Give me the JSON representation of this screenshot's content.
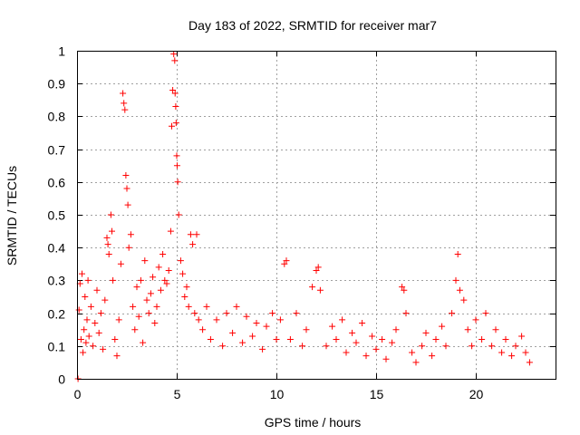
{
  "chart_data": {
    "type": "scatter",
    "title": "Day 183 of 2022, SRMTID for receiver mar7",
    "xlabel": "GPS time / hours",
    "ylabel": "SRMTID / TECUs",
    "xlim": [
      0,
      24
    ],
    "ylim": [
      0,
      1
    ],
    "x_ticks": [
      0,
      5,
      10,
      15,
      20
    ],
    "x_tick_labels": [
      "0",
      "5",
      "10",
      "15",
      "20"
    ],
    "y_ticks": [
      0,
      0.1,
      0.2,
      0.3,
      0.4,
      0.5,
      0.6,
      0.7,
      0.8,
      0.9,
      1
    ],
    "y_tick_labels": [
      "0",
      "0.1",
      "0.2",
      "0.3",
      "0.4",
      "0.5",
      "0.6",
      "0.7",
      "0.8",
      "0.9",
      "1"
    ],
    "grid": true,
    "marker": "+",
    "marker_color": "#ff0000",
    "series": [
      {
        "name": "SRMTID",
        "points": [
          [
            0.05,
            0.0
          ],
          [
            0.1,
            0.21
          ],
          [
            0.15,
            0.29
          ],
          [
            0.2,
            0.12
          ],
          [
            0.25,
            0.32
          ],
          [
            0.3,
            0.08
          ],
          [
            0.35,
            0.15
          ],
          [
            0.4,
            0.25
          ],
          [
            0.45,
            0.11
          ],
          [
            0.5,
            0.18
          ],
          [
            0.55,
            0.3
          ],
          [
            0.6,
            0.13
          ],
          [
            0.7,
            0.22
          ],
          [
            0.8,
            0.1
          ],
          [
            0.9,
            0.17
          ],
          [
            1.0,
            0.27
          ],
          [
            1.1,
            0.14
          ],
          [
            1.2,
            0.2
          ],
          [
            1.3,
            0.09
          ],
          [
            1.4,
            0.24
          ],
          [
            1.5,
            0.43
          ],
          [
            1.55,
            0.41
          ],
          [
            1.6,
            0.38
          ],
          [
            1.7,
            0.5
          ],
          [
            1.75,
            0.45
          ],
          [
            1.8,
            0.3
          ],
          [
            1.9,
            0.12
          ],
          [
            2.0,
            0.07
          ],
          [
            2.1,
            0.18
          ],
          [
            2.2,
            0.35
          ],
          [
            2.3,
            0.87
          ],
          [
            2.35,
            0.84
          ],
          [
            2.4,
            0.82
          ],
          [
            2.45,
            0.62
          ],
          [
            2.5,
            0.58
          ],
          [
            2.55,
            0.53
          ],
          [
            2.6,
            0.4
          ],
          [
            2.7,
            0.44
          ],
          [
            2.8,
            0.22
          ],
          [
            2.9,
            0.15
          ],
          [
            3.0,
            0.28
          ],
          [
            3.1,
            0.19
          ],
          [
            3.2,
            0.3
          ],
          [
            3.3,
            0.11
          ],
          [
            3.4,
            0.36
          ],
          [
            3.5,
            0.24
          ],
          [
            3.6,
            0.2
          ],
          [
            3.7,
            0.26
          ],
          [
            3.8,
            0.31
          ],
          [
            3.9,
            0.17
          ],
          [
            4.0,
            0.22
          ],
          [
            4.1,
            0.34
          ],
          [
            4.2,
            0.27
          ],
          [
            4.3,
            0.38
          ],
          [
            4.4,
            0.3
          ],
          [
            4.5,
            0.29
          ],
          [
            4.6,
            0.33
          ],
          [
            4.7,
            0.45
          ],
          [
            4.75,
            0.77
          ],
          [
            4.8,
            0.88
          ],
          [
            4.85,
            0.99
          ],
          [
            4.9,
            0.97
          ],
          [
            4.92,
            0.87
          ],
          [
            4.95,
            0.83
          ],
          [
            4.97,
            0.78
          ],
          [
            5.0,
            0.68
          ],
          [
            5.02,
            0.65
          ],
          [
            5.05,
            0.6
          ],
          [
            5.1,
            0.5
          ],
          [
            5.2,
            0.36
          ],
          [
            5.3,
            0.32
          ],
          [
            5.4,
            0.25
          ],
          [
            5.5,
            0.28
          ],
          [
            5.6,
            0.22
          ],
          [
            5.7,
            0.44
          ],
          [
            5.8,
            0.41
          ],
          [
            5.9,
            0.2
          ],
          [
            6.0,
            0.44
          ],
          [
            6.1,
            0.18
          ],
          [
            6.3,
            0.15
          ],
          [
            6.5,
            0.22
          ],
          [
            6.7,
            0.12
          ],
          [
            7.0,
            0.18
          ],
          [
            7.3,
            0.1
          ],
          [
            7.5,
            0.2
          ],
          [
            7.8,
            0.14
          ],
          [
            8.0,
            0.22
          ],
          [
            8.3,
            0.11
          ],
          [
            8.5,
            0.19
          ],
          [
            8.8,
            0.13
          ],
          [
            9.0,
            0.17
          ],
          [
            9.3,
            0.09
          ],
          [
            9.5,
            0.16
          ],
          [
            9.8,
            0.2
          ],
          [
            10.0,
            0.12
          ],
          [
            10.2,
            0.18
          ],
          [
            10.4,
            0.35
          ],
          [
            10.5,
            0.36
          ],
          [
            10.7,
            0.12
          ],
          [
            11.0,
            0.2
          ],
          [
            11.3,
            0.1
          ],
          [
            11.5,
            0.15
          ],
          [
            11.8,
            0.28
          ],
          [
            12.0,
            0.33
          ],
          [
            12.1,
            0.34
          ],
          [
            12.2,
            0.27
          ],
          [
            12.5,
            0.1
          ],
          [
            12.8,
            0.16
          ],
          [
            13.0,
            0.12
          ],
          [
            13.3,
            0.18
          ],
          [
            13.5,
            0.08
          ],
          [
            13.8,
            0.14
          ],
          [
            14.0,
            0.11
          ],
          [
            14.3,
            0.17
          ],
          [
            14.5,
            0.07
          ],
          [
            14.8,
            0.13
          ],
          [
            15.0,
            0.09
          ],
          [
            15.3,
            0.12
          ],
          [
            15.5,
            0.06
          ],
          [
            15.8,
            0.11
          ],
          [
            16.0,
            0.15
          ],
          [
            16.3,
            0.28
          ],
          [
            16.4,
            0.27
          ],
          [
            16.5,
            0.2
          ],
          [
            16.8,
            0.08
          ],
          [
            17.0,
            0.05
          ],
          [
            17.3,
            0.1
          ],
          [
            17.5,
            0.14
          ],
          [
            17.8,
            0.07
          ],
          [
            18.0,
            0.12
          ],
          [
            18.3,
            0.16
          ],
          [
            18.5,
            0.1
          ],
          [
            18.8,
            0.2
          ],
          [
            19.0,
            0.3
          ],
          [
            19.1,
            0.38
          ],
          [
            19.2,
            0.27
          ],
          [
            19.4,
            0.24
          ],
          [
            19.6,
            0.15
          ],
          [
            19.8,
            0.1
          ],
          [
            20.0,
            0.18
          ],
          [
            20.3,
            0.12
          ],
          [
            20.5,
            0.2
          ],
          [
            20.8,
            0.1
          ],
          [
            21.0,
            0.15
          ],
          [
            21.3,
            0.08
          ],
          [
            21.5,
            0.12
          ],
          [
            21.8,
            0.07
          ],
          [
            22.0,
            0.1
          ],
          [
            22.3,
            0.13
          ],
          [
            22.5,
            0.08
          ],
          [
            22.7,
            0.05
          ]
        ]
      }
    ]
  }
}
